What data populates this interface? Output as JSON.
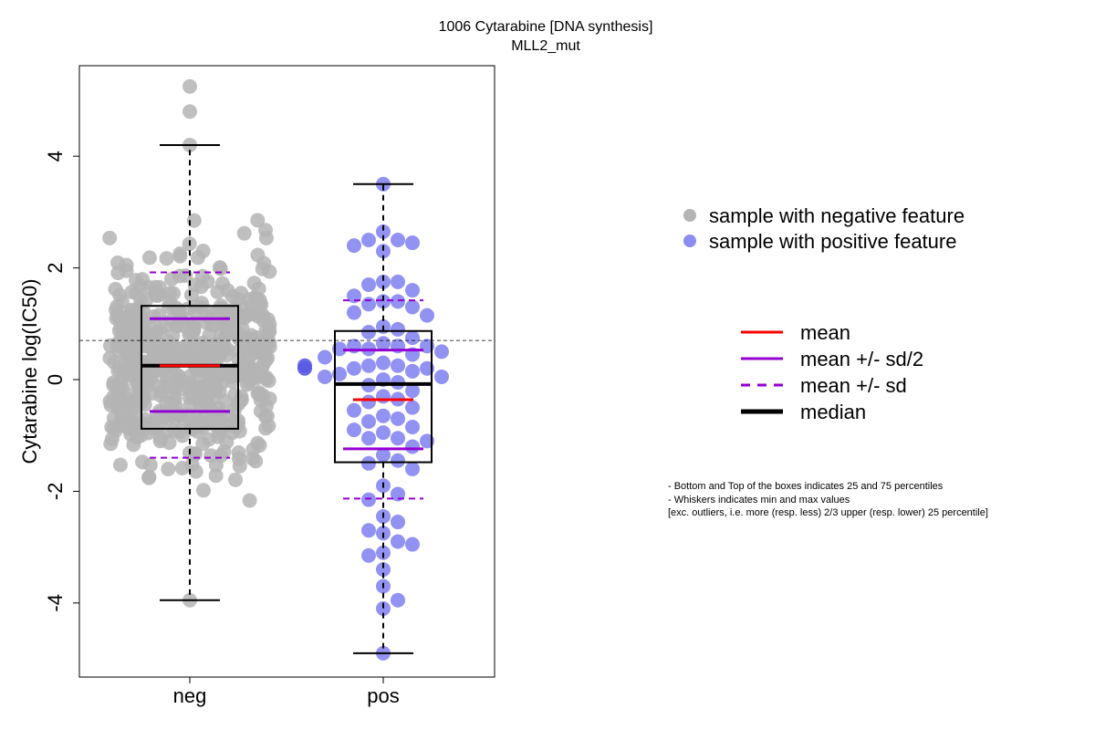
{
  "chart_data": {
    "type": "box-swarm",
    "title": "1006 Cytarabine [DNA synthesis]",
    "subtitle": "MLL2_mut",
    "ylabel": "Cytarabine log(IC50)",
    "xlabel": "",
    "categories": [
      "neg",
      "pos"
    ],
    "yticks": [
      -4,
      -2,
      0,
      2,
      4
    ],
    "ylim": [
      -5.2,
      5.6
    ],
    "threshold_line": 0.7,
    "colors": {
      "neg_points": "#b4b4b4",
      "pos_points": "#8c8cf2",
      "mean": "#ff0000",
      "sd": "#9400d3",
      "median": "#000000",
      "box": "#000000"
    },
    "groups": [
      {
        "name": "neg",
        "whisker_low": -3.95,
        "q1": -0.88,
        "median": 0.25,
        "q3": 1.32,
        "whisker_high": 4.2,
        "mean": 0.25,
        "mean_minus_half_sd": -0.57,
        "mean_plus_half_sd": 1.09,
        "mean_minus_sd": -1.4,
        "mean_plus_sd": 1.92,
        "outliers": [
          4.8,
          5.25
        ]
      },
      {
        "name": "pos",
        "whisker_low": -4.9,
        "q1": -1.48,
        "median": -0.08,
        "q3": 0.87,
        "whisker_high": 3.5,
        "mean": -0.36,
        "mean_minus_half_sd": -1.24,
        "mean_plus_half_sd": 0.53,
        "mean_minus_sd": -2.13,
        "mean_plus_sd": 1.42,
        "outliers": [],
        "values": [
          3.5,
          2.65,
          2.5,
          2.5,
          2.45,
          2.4,
          2.3,
          1.75,
          1.75,
          1.7,
          1.6,
          1.5,
          1.4,
          1.4,
          1.35,
          1.3,
          1.2,
          1.15,
          0.95,
          0.9,
          0.85,
          0.75,
          0.65,
          0.6,
          0.6,
          0.6,
          0.55,
          0.55,
          0.5,
          0.45,
          0.4,
          0.3,
          0.25,
          0.25,
          0.2,
          0.2,
          0.15,
          0.1,
          0.05,
          0.05,
          0.0,
          -0.05,
          -0.1,
          -0.2,
          -0.3,
          -0.35,
          -0.4,
          -0.5,
          -0.55,
          -0.65,
          -0.7,
          -0.75,
          -0.85,
          -0.9,
          -0.95,
          -1.05,
          -1.05,
          -1.1,
          -1.2,
          -1.35,
          -1.45,
          -1.5,
          -1.6,
          -1.9,
          -2.05,
          -2.15,
          -2.45,
          -2.55,
          -2.7,
          -2.75,
          -2.9,
          -2.95,
          -3.1,
          -3.15,
          -3.4,
          -3.7,
          -3.95,
          -4.1,
          -4.9
        ]
      }
    ],
    "legend": {
      "points": [
        {
          "label": "sample with negative feature"
        },
        {
          "label": "sample with positive feature"
        }
      ],
      "lines": [
        {
          "label": "mean"
        },
        {
          "label": "mean +/- sd/2"
        },
        {
          "label": "mean +/- sd"
        },
        {
          "label": "median"
        }
      ]
    },
    "notes": [
      "- Bottom and Top of the boxes indicates 25 and 75 percentiles",
      "- Whiskers indicates min and max values",
      "[exc. outliers, i.e. more (resp. less) 2/3 upper (resp. lower) 25 percentile]"
    ]
  }
}
